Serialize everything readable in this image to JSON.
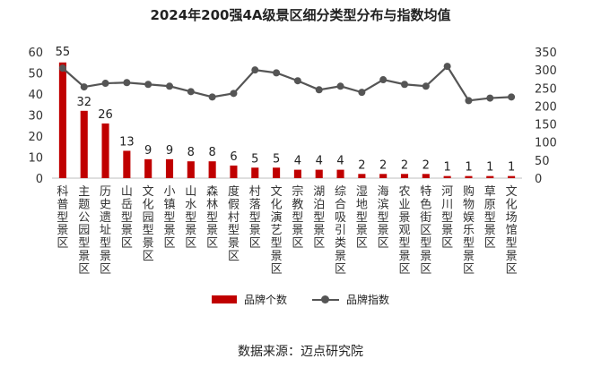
{
  "chart_data": {
    "type": "bar",
    "title": "2024年200强4A级景区细分类型分布与指数均值",
    "categories": [
      "科普型景区",
      "主题公园型景区",
      "历史遗址型景区",
      "山岳型景区",
      "文化园型景区",
      "小镇型景区",
      "山水型景区",
      "森林型景区",
      "度假村型景区",
      "村落型景区",
      "文化演艺型景区",
      "宗教型景区",
      "湖泊型景区",
      "综合吸引类景区",
      "湿地型景区",
      "海滨型景区",
      "农业景观型景区",
      "特色街区型景区",
      "河川型景区",
      "购物娱乐型景区",
      "草原型景区",
      "文化场馆型景区"
    ],
    "series": [
      {
        "name": "品牌个数",
        "type": "bar",
        "axis": "left",
        "color": "#C00000",
        "values": [
          55,
          32,
          26,
          13,
          9,
          9,
          8,
          8,
          6,
          5,
          5,
          4,
          4,
          4,
          2,
          2,
          2,
          2,
          1,
          1,
          1,
          1
        ]
      },
      {
        "name": "品牌指数",
        "type": "line",
        "axis": "right",
        "color": "#555555",
        "values": [
          305,
          253,
          263,
          265,
          260,
          255,
          240,
          225,
          235,
          300,
          292,
          270,
          245,
          255,
          238,
          273,
          260,
          255,
          310,
          215,
          222,
          225
        ]
      }
    ],
    "left_axis": {
      "min": 0,
      "max": 60,
      "ticks": [
        0,
        10,
        20,
        30,
        40,
        50,
        60
      ]
    },
    "right_axis": {
      "min": 0,
      "max": 350,
      "ticks": [
        0,
        50,
        100,
        150,
        200,
        250,
        300,
        350
      ]
    },
    "data_labels": [
      "55",
      "32",
      "26",
      "13",
      "9",
      "9",
      "8",
      "8",
      "6",
      "5",
      "5",
      "4",
      "4",
      "4",
      "2",
      "2",
      "2",
      "2",
      "1",
      "1",
      "1",
      "1"
    ],
    "legend": {
      "position": "bottom",
      "bar_label": "品牌个数",
      "line_label": "品牌指数"
    },
    "grid": false
  },
  "source": "数据来源：迈点研究院"
}
